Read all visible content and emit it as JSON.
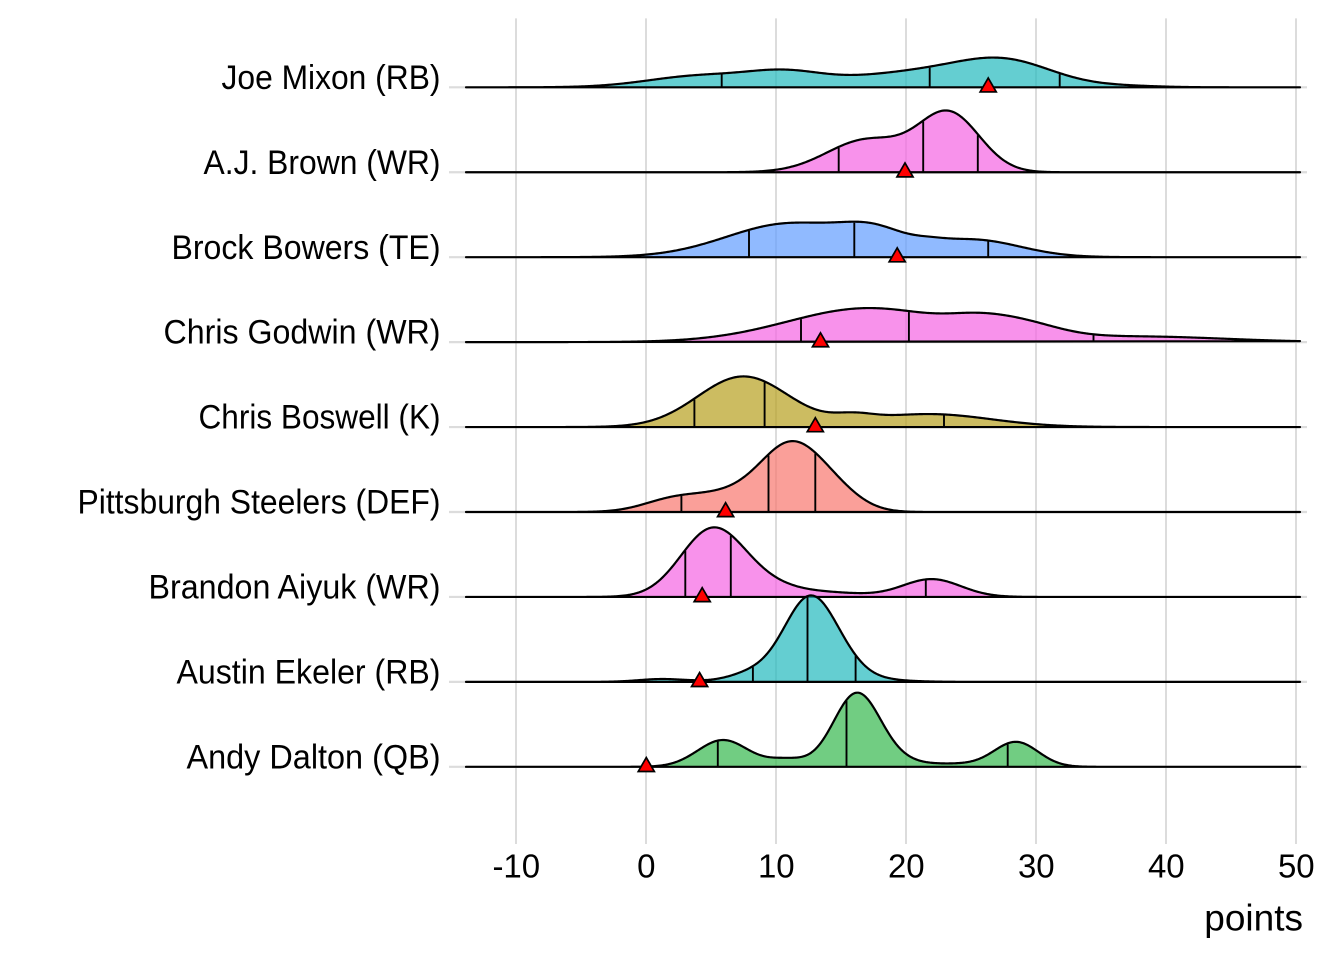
{
  "chart_data": {
    "type": "ridgeline_density",
    "title": "",
    "xlabel": "points",
    "ylabel": "",
    "x_ticks": [
      -10,
      0,
      10,
      20,
      30,
      40,
      50
    ],
    "x_tick_labels": [
      "-10",
      "0",
      "10",
      "20",
      "30",
      "40",
      "50"
    ],
    "xlim": [
      -13.9,
      50.3
    ],
    "grid": "vertical-major-and-row-baselines",
    "legend_position": "none",
    "marker_legend": "red triangle = actual points",
    "quantile_lines": [
      "p25",
      "p50",
      "p75"
    ],
    "series": [
      {
        "label": "Joe Mixon (RB)",
        "position": "RB",
        "fill": "#22B9BE",
        "fill_opacity": 0.7,
        "quantiles": {
          "p25": 5.8,
          "p50": 21.8,
          "p75": 31.8
        },
        "actual_points": 26.3,
        "density_components": [
          {
            "mean": 4.3,
            "sd": 4.1,
            "amp": 11.5
          },
          {
            "mean": 10.7,
            "sd": 2.9,
            "amp": 11.8
          },
          {
            "mean": 20.8,
            "sd": 5.4,
            "amp": 14.6
          },
          {
            "mean": 27.7,
            "sd": 3.7,
            "amp": 22.5
          },
          {
            "mean": 36.9,
            "sd": 2.66,
            "amp": 1.2
          }
        ]
      },
      {
        "label": "A.J. Brown (WR)",
        "position": "WR",
        "fill": "#F564E3",
        "fill_opacity": 0.7,
        "quantiles": {
          "p25": 14.8,
          "p50": 21.3,
          "p75": 25.5
        },
        "actual_points": 19.9,
        "density_components": [
          {
            "mean": 17.0,
            "sd": 3.1,
            "amp": 32.5
          },
          {
            "mean": 23.15,
            "sd": 2.25,
            "amp": 54
          },
          {
            "mean": 25.4,
            "sd": 2.0,
            "amp": 6
          }
        ]
      },
      {
        "label": "Brock Bowers (TE)",
        "position": "TE",
        "fill": "#619CFF",
        "fill_opacity": 0.7,
        "quantiles": {
          "p25": 7.9,
          "p50": 16.0,
          "p75": 26.3
        },
        "actual_points": 19.3,
        "density_components": [
          {
            "mean": 11.1,
            "sd": 4.9,
            "amp": 33.8
          },
          {
            "mean": 17.53,
            "sd": 2.45,
            "amp": 17.34
          },
          {
            "mean": 21.8,
            "sd": 1.22,
            "amp": 2.34
          },
          {
            "mean": 25.15,
            "sd": 3.63,
            "amp": 17.2
          }
        ]
      },
      {
        "label": "Chris Godwin (WR)",
        "position": "WR",
        "fill": "#F564E3",
        "fill_opacity": 0.7,
        "quantiles": {
          "p25": 11.9,
          "p50": 20.2,
          "p75": 34.4
        },
        "actual_points": 13.4,
        "density_components": [
          {
            "mean": 17.11,
            "sd": 6.24,
            "amp": 34.0
          },
          {
            "mean": 25.16,
            "sd": 2.22,
            "amp": 6.56
          },
          {
            "mean": 28.63,
            "sd": 2.98,
            "amp": 14.05
          },
          {
            "mean": 37.8,
            "sd": 6.7,
            "amp": 5.6
          }
        ]
      },
      {
        "label": "Chris Boswell (K)",
        "position": "K",
        "fill": "#B7A01E",
        "fill_opacity": 0.7,
        "quantiles": {
          "p25": 3.7,
          "p50": 9.1,
          "p75": 22.9
        },
        "actual_points": 13.0,
        "density_components": [
          {
            "mean": 7.45,
            "sd": 3.5,
            "amp": 50.5
          },
          {
            "mean": 15.94,
            "sd": 1.54,
            "amp": 5.8
          },
          {
            "mean": 21.72,
            "sd": 4.79,
            "amp": 13.0
          }
        ]
      },
      {
        "label": "Pittsburgh Steelers (DEF)",
        "position": "DEF",
        "fill": "#F8766D",
        "fill_opacity": 0.7,
        "quantiles": {
          "p25": 2.7,
          "p50": 9.4,
          "p75": 13.0
        },
        "actual_points": 6.1,
        "density_components": [
          {
            "mean": 1.8,
            "sd": 2.2,
            "amp": 8.5
          },
          {
            "mean": 6.8,
            "sd": 3.4,
            "amp": 19
          },
          {
            "mean": 11.2,
            "sd": 2.3,
            "amp": 58
          },
          {
            "mean": 14.5,
            "sd": 2.05,
            "amp": 17
          }
        ]
      },
      {
        "label": "Brandon Aiyuk (WR)",
        "position": "WR",
        "fill": "#F564E3",
        "fill_opacity": 0.7,
        "quantiles": {
          "p25": 3.0,
          "p50": 6.5,
          "p75": 21.5
        },
        "actual_points": 4.3,
        "density_components": [
          {
            "mean": 4.95,
            "sd": 2.4,
            "amp": 60.5
          },
          {
            "mean": 8.1,
            "sd": 3.0,
            "amp": 15
          },
          {
            "mean": 14.6,
            "sd": 2.6,
            "amp": 3.4
          },
          {
            "mean": 21.95,
            "sd": 2.25,
            "amp": 17.8
          }
        ]
      },
      {
        "label": "Austin Ekeler (RB)",
        "position": "RB",
        "fill": "#22B9BE",
        "fill_opacity": 0.7,
        "quantiles": {
          "p25": 8.2,
          "p50": 12.4,
          "p75": 16.1
        },
        "actual_points": 4.1,
        "density_components": [
          {
            "mean": 1.2,
            "sd": 1.8,
            "amp": 2.8
          },
          {
            "mean": 8.0,
            "sd": 1.6,
            "amp": 5
          },
          {
            "mean": 12.6,
            "sd": 1.95,
            "amp": 74
          },
          {
            "mean": 12.7,
            "sd": 3.6,
            "amp": 11
          },
          {
            "mean": 15.2,
            "sd": 1.5,
            "amp": 6
          }
        ]
      },
      {
        "label": "Andy Dalton (QB)",
        "position": "QB",
        "fill": "#35B84D",
        "fill_opacity": 0.7,
        "quantiles": {
          "p25": 5.5,
          "p50": 15.4,
          "p75": 27.8
        },
        "actual_points": 0.0,
        "density_components": [
          {
            "mean": 5.9,
            "sd": 1.95,
            "amp": 26.8
          },
          {
            "mean": 10.8,
            "sd": 1.45,
            "amp": 6.95
          },
          {
            "mean": 16.15,
            "sd": 1.78,
            "amp": 67
          },
          {
            "mean": 17.8,
            "sd": 2.5,
            "amp": 8.8
          },
          {
            "mean": 24,
            "sd": 2,
            "amp": 2.5
          },
          {
            "mean": 28.45,
            "sd": 1.7,
            "amp": 24.8
          }
        ]
      }
    ],
    "marker": {
      "shape": "triangle-up",
      "fill": "#FF0000",
      "stroke": "#000000"
    },
    "colors": {
      "grid": "#DCDCDC",
      "outline": "#000000",
      "text": "#000000",
      "background": "#FFFFFF"
    }
  }
}
